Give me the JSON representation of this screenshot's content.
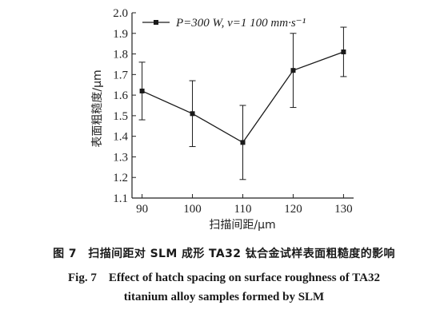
{
  "chart_data": {
    "type": "line",
    "x": [
      90,
      100,
      110,
      120,
      130
    ],
    "xlim": [
      88,
      132
    ],
    "ylim": [
      1.1,
      2.0
    ],
    "xticks": [
      90,
      100,
      110,
      120,
      130
    ],
    "yticks": [
      1.1,
      1.2,
      1.3,
      1.4,
      1.5,
      1.6,
      1.7,
      1.8,
      1.9,
      2.0
    ],
    "xlabel": "扫描间距/μm",
    "ylabel": "表面粗糙度/μm",
    "grid": false,
    "legend_position": "top-left",
    "series": [
      {
        "name": "P=300 W, v=1 100 mm·s⁻¹",
        "values": [
          1.62,
          1.51,
          1.37,
          1.72,
          1.81
        ],
        "error_low": [
          1.48,
          1.35,
          1.19,
          1.54,
          1.69
        ],
        "error_high": [
          1.76,
          1.67,
          1.55,
          1.9,
          1.93
        ],
        "color": "#1a1a1a",
        "marker": "square"
      }
    ]
  },
  "caption": {
    "cn": "图 7　扫描间距对 SLM 成形 TA32 钛合金试样表面粗糙度的影响",
    "en_line1": "Fig. 7　Effect of hatch spacing on surface roughness of TA32",
    "en_line2": "titanium alloy samples formed by SLM"
  }
}
